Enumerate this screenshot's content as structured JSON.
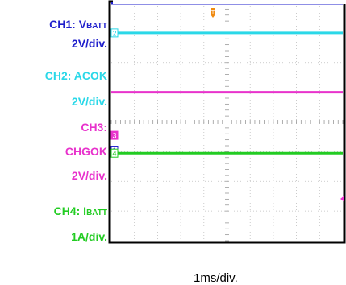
{
  "channels": [
    {
      "label": "CH1: V",
      "sub": "BATT",
      "scale": "2V/div.",
      "color": "#1f1fcc",
      "level": 4.0
    },
    {
      "label": "CH2: ACOK",
      "sub": "",
      "scale": "2V/div.",
      "color": "#2ad8e8",
      "level": 3.0
    },
    {
      "label": "CH3:",
      "sub": "",
      "label2": "CHGOK",
      "scale": "2V/div.",
      "color": "#e832cc",
      "level": 1.0
    },
    {
      "label": "CH4: I",
      "sub": "BATT",
      "scale": "1A/div.",
      "color": "#22cc22",
      "level": -1.05
    }
  ],
  "markers": [
    "2",
    "1",
    "3",
    "4"
  ],
  "xscale": "1ms/div.",
  "chart_data": {
    "type": "line",
    "xlabel": "1ms/div.",
    "x_divisions": 10,
    "y_divisions": 8,
    "series": [
      {
        "name": "CH1: VBATT",
        "y_div": [
          4.0,
          4.0
        ]
      },
      {
        "name": "CH2: ACOK",
        "y_div": [
          3.0,
          3.0
        ]
      },
      {
        "name": "CH3: CHGOK",
        "y_div": [
          1.0,
          1.0
        ]
      },
      {
        "name": "CH4: IBATT",
        "y_div": [
          -1.05,
          -1.05
        ]
      }
    ],
    "grid": true
  }
}
